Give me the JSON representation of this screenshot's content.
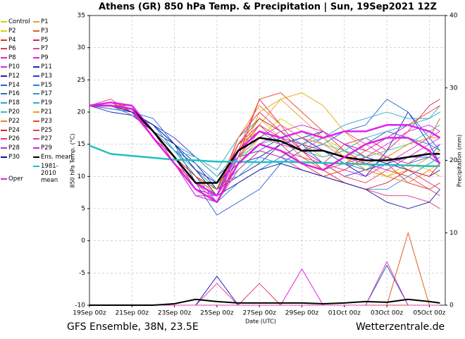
{
  "chart_data": {
    "type": "line",
    "title": "Athens  (GR)  850 hPa Temp. & Precipitation | Sun, 19Sep2021 12Z",
    "x_label": "Date (UTC)",
    "y_label": "850 hPa Temp. (°C)",
    "y2_label": "Precipitation (mm)",
    "footer_left": "GFS Ensemble, 38N, 23.5E",
    "footer_right": "Wetterzentrale.de",
    "grid": true,
    "x": [
      0,
      1,
      2,
      3,
      4,
      5,
      6,
      7,
      8,
      9,
      10,
      11,
      12,
      13,
      14,
      15,
      16,
      16.5
    ],
    "xlim": [
      0,
      16.75
    ],
    "xticks": [
      {
        "value": 0,
        "label": "19Sep 00z"
      },
      {
        "value": 2,
        "label": "21Sep 00z"
      },
      {
        "value": 4,
        "label": "23Sep 00z"
      },
      {
        "value": 6,
        "label": "25Sep 00z"
      },
      {
        "value": 8,
        "label": "27Sep 00z"
      },
      {
        "value": 10,
        "label": "29Sep 00z"
      },
      {
        "value": 12,
        "label": "01Oct 00z"
      },
      {
        "value": 14,
        "label": "03Oct 00z"
      },
      {
        "value": 16,
        "label": "05Oct 00z"
      }
    ],
    "ylim": [
      -10,
      35
    ],
    "yticks": [
      -10,
      -5,
      0,
      5,
      10,
      15,
      20,
      25,
      30,
      35
    ],
    "y2lim": [
      0,
      40
    ],
    "y2ticks": [
      0,
      10,
      20,
      30,
      40
    ],
    "series": [
      {
        "name": "Control",
        "color": "#c8d800",
        "values": [
          21,
          21.5,
          20.5,
          17,
          13,
          9,
          7,
          12,
          16,
          19,
          17,
          16,
          14,
          12,
          11,
          10,
          12,
          13
        ]
      },
      {
        "name": "P1",
        "color": "#f0a030",
        "values": [
          21,
          21,
          20,
          16,
          12,
          8,
          6,
          13,
          18,
          22,
          19,
          16,
          13,
          12,
          10,
          11,
          13,
          14
        ]
      },
      {
        "name": "P2",
        "color": "#e0d000",
        "values": [
          21,
          21,
          20.5,
          16,
          12,
          9,
          8,
          14,
          19,
          16,
          15,
          13,
          14,
          11,
          10,
          12,
          11,
          12
        ]
      },
      {
        "name": "P3",
        "color": "#e06020",
        "values": [
          21,
          21.5,
          20,
          17,
          14,
          10,
          7,
          15,
          17,
          16,
          13,
          11,
          12,
          14,
          13,
          15,
          16,
          19
        ],
        "precipitation": [
          0,
          0,
          0,
          0,
          0,
          0,
          0,
          0,
          0,
          0,
          0,
          0,
          0,
          0,
          0,
          10,
          0,
          0
        ]
      },
      {
        "name": "P4",
        "color": "#e03020",
        "values": [
          21,
          21,
          20,
          16,
          13,
          8,
          7,
          14,
          18,
          15,
          12,
          10,
          11,
          13,
          12,
          9,
          8,
          9
        ]
      },
      {
        "name": "P5",
        "color": "#e02050",
        "values": [
          21,
          21,
          21,
          17,
          13,
          9,
          6,
          13,
          22,
          18,
          14,
          12,
          15,
          16,
          14,
          17,
          21,
          22
        ]
      },
      {
        "name": "P6",
        "color": "#e03060",
        "values": [
          21,
          22,
          20,
          17,
          12,
          8,
          7,
          16,
          20,
          17,
          15,
          17,
          14,
          12,
          13,
          11,
          9,
          8
        ]
      },
      {
        "name": "P7",
        "color": "#e040a0",
        "values": [
          21,
          21,
          20,
          16,
          13,
          9,
          6,
          13,
          17,
          15,
          12,
          11,
          13,
          15,
          17,
          16,
          14,
          15
        ],
        "precipitation": [
          0,
          0,
          0,
          0,
          0,
          0,
          3,
          0,
          0,
          0,
          0,
          0,
          0,
          0,
          0,
          0,
          0,
          0
        ]
      },
      {
        "name": "P8",
        "color": "#e020c0",
        "values": [
          21,
          21,
          20,
          16,
          12,
          7,
          7,
          15,
          18,
          16,
          14,
          12,
          11,
          10,
          12,
          14,
          16,
          17
        ]
      },
      {
        "name": "P9",
        "color": "#e020e0",
        "values": [
          21,
          21,
          20.5,
          16,
          12,
          8,
          7,
          14,
          16,
          18,
          16,
          14,
          12,
          13,
          15,
          17,
          18,
          17
        ],
        "precipitation": [
          0,
          0,
          0,
          0,
          0,
          0,
          0,
          0,
          0,
          0,
          5,
          0,
          0,
          0,
          0,
          0,
          0,
          0
        ]
      },
      {
        "name": "P10",
        "color": "#e020f0",
        "values": [
          21,
          21.5,
          21,
          17,
          13,
          9,
          7,
          14,
          17,
          16,
          17,
          16,
          17,
          17,
          18,
          18,
          17,
          16
        ]
      },
      {
        "name": "P11",
        "color": "#2020c0",
        "values": [
          21,
          20.5,
          20,
          18,
          14,
          11,
          9,
          12,
          13,
          15,
          16,
          14,
          12,
          10,
          14,
          20,
          15,
          12
        ],
        "precipitation": [
          0,
          0,
          0,
          0,
          0,
          0,
          4,
          0,
          0,
          0,
          0,
          0,
          0,
          0,
          0,
          0,
          0,
          0
        ]
      },
      {
        "name": "P12",
        "color": "#2020a0",
        "values": [
          21,
          20,
          19.5,
          17,
          15,
          12,
          8,
          10,
          12,
          15,
          16,
          17,
          15,
          13,
          12,
          11,
          10,
          11
        ]
      },
      {
        "name": "P13",
        "color": "#2040d0",
        "values": [
          21,
          21,
          20,
          18,
          16,
          13,
          10,
          13,
          14,
          13,
          15,
          12,
          10,
          11,
          12,
          13,
          13,
          12
        ]
      },
      {
        "name": "P14",
        "color": "#2060d0",
        "values": [
          21,
          21,
          20,
          19,
          15,
          9,
          4,
          6,
          8,
          12,
          14,
          15,
          17,
          18,
          22,
          20,
          16,
          14
        ],
        "precipitation": [
          0,
          0,
          0,
          0,
          0,
          0,
          0,
          0,
          0,
          0,
          0,
          0,
          0,
          0,
          5.5,
          0,
          0,
          0
        ]
      },
      {
        "name": "P15",
        "color": "#2080e0",
        "values": [
          21,
          20.5,
          20,
          18,
          14,
          10,
          6,
          9,
          11,
          13,
          12,
          11,
          13,
          15,
          17,
          16,
          15,
          14
        ]
      },
      {
        "name": "P16",
        "color": "#2070c0",
        "values": [
          21,
          21,
          19.5,
          18,
          15,
          11,
          8,
          11,
          14,
          16,
          15,
          14,
          12,
          11,
          13,
          12,
          13,
          15
        ]
      },
      {
        "name": "P17",
        "color": "#3090e0",
        "values": [
          21,
          21,
          20,
          17,
          14,
          12,
          9,
          10,
          13,
          12,
          11,
          10,
          9,
          8,
          8,
          10,
          12,
          13
        ]
      },
      {
        "name": "P18",
        "color": "#30a0d0",
        "values": [
          21,
          21,
          20,
          18,
          15,
          13,
          11,
          16,
          19,
          17,
          15,
          16,
          18,
          19,
          20,
          19,
          19,
          20
        ]
      },
      {
        "name": "P19",
        "color": "#30b0c0",
        "values": [
          21,
          21,
          20,
          18,
          14,
          13,
          10,
          14,
          17,
          15,
          14,
          13,
          14,
          16,
          17,
          18,
          19,
          21
        ]
      },
      {
        "name": "P20",
        "color": "#30c0b0",
        "values": [
          21,
          21,
          20,
          17,
          14,
          11,
          8,
          13,
          15,
          16,
          17,
          15,
          14,
          13,
          14,
          15,
          17,
          18
        ]
      },
      {
        "name": "P21",
        "color": "#f0a000",
        "values": [
          21,
          21,
          20,
          17,
          13,
          9,
          7,
          12,
          20,
          22,
          23,
          21,
          17,
          14,
          13,
          15,
          16,
          16
        ]
      },
      {
        "name": "P22",
        "color": "#f08020",
        "values": [
          21,
          21.5,
          20,
          17,
          13,
          10,
          8,
          16,
          21,
          18,
          16,
          15,
          13,
          11,
          10,
          9,
          11,
          10
        ]
      },
      {
        "name": "P23",
        "color": "#f04020",
        "values": [
          21,
          21,
          20.5,
          16,
          12,
          9,
          7,
          14,
          22,
          23,
          20,
          17,
          15,
          14,
          16,
          18,
          20,
          21
        ]
      },
      {
        "name": "P24",
        "color": "#e02020",
        "values": [
          21,
          21,
          20,
          17,
          13,
          10,
          8,
          15,
          19,
          17,
          14,
          11,
          9,
          8,
          9,
          11,
          10,
          12
        ]
      },
      {
        "name": "P25",
        "color": "#e04060",
        "values": [
          21,
          21,
          20,
          16,
          12,
          8,
          7,
          12,
          15,
          14,
          13,
          12,
          10,
          9,
          11,
          10,
          8,
          7
        ],
        "precipitation": [
          0,
          0,
          0,
          0,
          0,
          0,
          0,
          0,
          3,
          0,
          0,
          0,
          0,
          0,
          0,
          0,
          0,
          0
        ]
      },
      {
        "name": "P26",
        "color": "#e03080",
        "values": [
          21,
          21.5,
          20,
          16,
          12,
          7,
          6,
          11,
          14,
          13,
          11,
          10,
          9,
          8,
          7,
          7,
          6,
          5
        ]
      },
      {
        "name": "P27",
        "color": "#e040b0",
        "values": [
          21,
          21,
          20,
          16,
          12,
          8,
          7,
          13,
          16,
          15,
          14,
          16,
          17,
          15,
          13,
          12,
          14,
          15
        ],
        "precipitation": [
          0,
          0,
          0,
          0,
          0,
          0,
          0,
          0,
          0,
          0,
          0,
          0,
          0,
          0,
          6,
          0,
          0,
          0
        ]
      },
      {
        "name": "P28",
        "color": "#c030d0",
        "values": [
          21,
          21,
          20.5,
          16,
          13,
          8,
          7,
          14,
          17,
          16,
          15,
          14,
          13,
          12,
          11,
          13,
          15,
          16
        ]
      },
      {
        "name": "P29",
        "color": "#d020f0",
        "values": [
          21,
          21,
          20,
          16,
          12,
          7,
          6,
          12,
          15,
          17,
          18,
          17,
          15,
          14,
          16,
          18,
          17,
          16
        ]
      },
      {
        "name": "P30",
        "color": "#1010a0",
        "values": [
          21,
          21,
          20,
          18,
          15,
          11,
          7,
          9,
          11,
          12,
          11,
          10,
          9,
          8,
          6,
          5,
          6,
          8
        ]
      },
      {
        "name": "Ens. mean",
        "color": "#000000",
        "values": [
          21,
          21,
          20.5,
          17,
          13,
          9,
          9,
          14,
          16,
          15.5,
          14,
          14,
          13,
          12.5,
          12.5,
          13,
          13.5,
          13.5
        ],
        "precipitation": [
          0,
          0,
          0,
          0,
          0.2,
          0.8,
          0.5,
          0.3,
          0.3,
          0.3,
          0.3,
          0.2,
          0.3,
          0.5,
          0.4,
          0.8,
          0.5,
          0.3
        ]
      },
      {
        "name": "1981-2010 mean",
        "color": "#20c0c0",
        "values": [
          14.8,
          13.5,
          13.2,
          12.9,
          12.6,
          12.5,
          12.3,
          12.3,
          12.2,
          12.3,
          12.2,
          12.1,
          12.0,
          11.9,
          11.8,
          11.7,
          11.6,
          11.6
        ]
      },
      {
        "name": "Oper",
        "color": "#e020e0",
        "values": [
          21,
          21,
          20.5,
          16,
          12,
          8,
          6,
          12,
          15,
          14,
          12,
          11,
          13,
          15,
          16,
          16,
          14,
          12
        ]
      }
    ]
  }
}
